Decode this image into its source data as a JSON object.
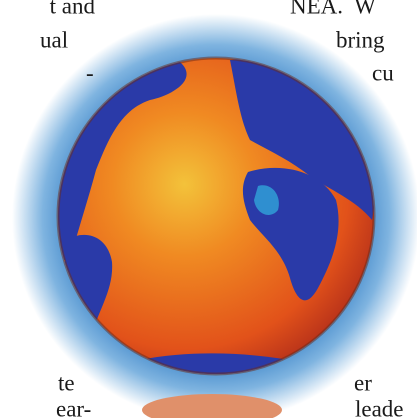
{
  "text_left": [
    "t and",
    "ual",
    "-",
    "te",
    "ear-"
  ],
  "text_right": [
    "NEA.  W",
    "bring",
    "cu",
    "er",
    "leade"
  ]
}
